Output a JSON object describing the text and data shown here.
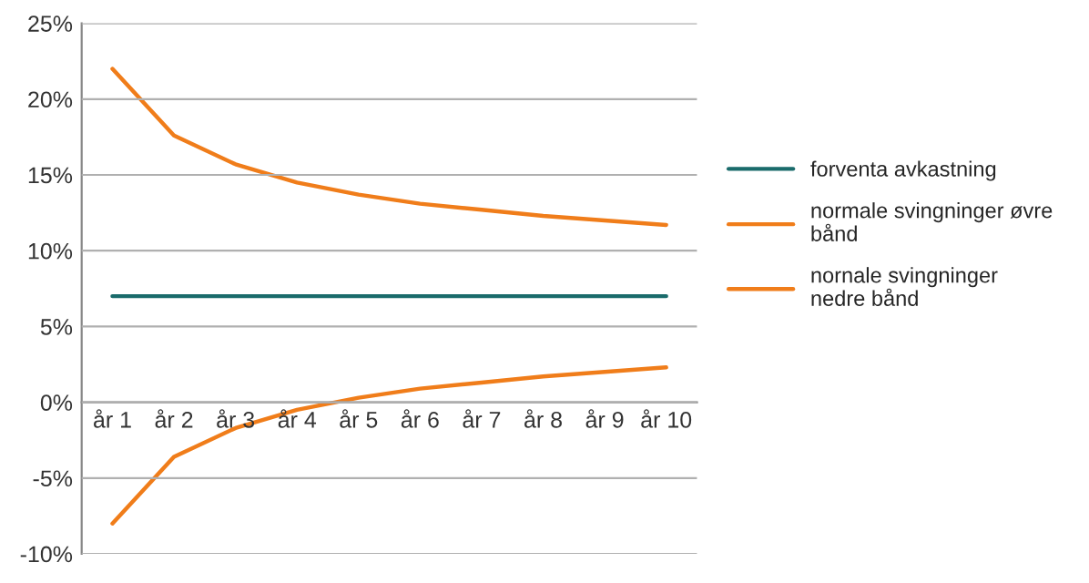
{
  "chart_data": {
    "type": "line",
    "categories": [
      "år 1",
      "år 2",
      "år 3",
      "år 4",
      "år 5",
      "år 6",
      "år 7",
      "år 8",
      "år 9",
      "år 10"
    ],
    "series": [
      {
        "name": "forventa avkastning",
        "color": "#1a6b6b",
        "values": [
          7,
          7,
          7,
          7,
          7,
          7,
          7,
          7,
          7,
          7
        ]
      },
      {
        "name": "normale svingninger øvre bånd",
        "color": "#f07d1a",
        "values": [
          22,
          17.6,
          15.7,
          14.5,
          13.7,
          13.1,
          12.7,
          12.3,
          12,
          11.7
        ]
      },
      {
        "name": "nornale svingninger nedre bånd",
        "color": "#f07d1a",
        "values": [
          -8,
          -3.6,
          -1.7,
          -0.5,
          0.3,
          0.9,
          1.3,
          1.7,
          2,
          2.3
        ]
      }
    ],
    "ylim": [
      -10,
      25
    ],
    "yticks": [
      {
        "value": -10,
        "label": "-10%"
      },
      {
        "value": -5,
        "label": "-5%"
      },
      {
        "value": 0,
        "label": "0%"
      },
      {
        "value": 5,
        "label": "5%"
      },
      {
        "value": 10,
        "label": "10%"
      },
      {
        "value": 15,
        "label": "15%"
      },
      {
        "value": 20,
        "label": "20%"
      },
      {
        "value": 25,
        "label": "25%"
      }
    ],
    "grid": "y",
    "legend": "right",
    "marker": "none",
    "line_style": "solid"
  }
}
